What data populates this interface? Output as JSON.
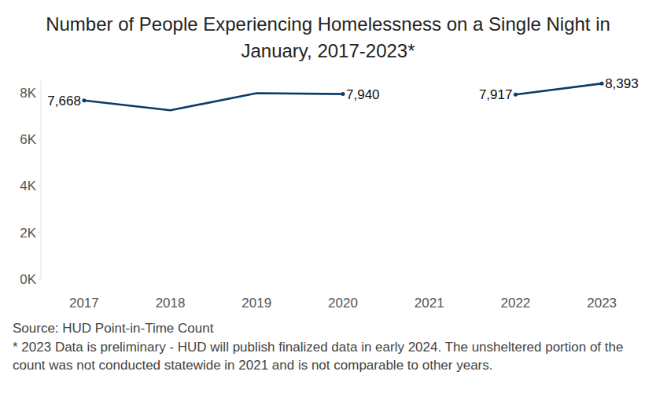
{
  "chart_data": {
    "type": "line",
    "title": "Number of People Experiencing Homelessness on a Single Night in January, 2017-2023*",
    "source": "Source: HUD Point-in-Time Count",
    "footnote": "* 2023 Data is preliminary - HUD will publish finalized data in early 2024. The unsheltered portion of the count was not conducted statewide in 2021 and is not comparable to other years.",
    "categories": [
      "2017",
      "2018",
      "2019",
      "2020",
      "2021",
      "2022",
      "2023"
    ],
    "values": [
      7668,
      7243,
      7977,
      7940,
      null,
      7917,
      8393
    ],
    "value_labels": [
      "7,668",
      null,
      null,
      "7,940",
      null,
      "7,917",
      "8,393"
    ],
    "data_labels": true,
    "color": "#0d3a66",
    "ylim": [
      0,
      8500
    ],
    "yticks": [
      {
        "value": 0,
        "label": "0K"
      },
      {
        "value": 2000,
        "label": "2K"
      },
      {
        "value": 4000,
        "label": "4K"
      },
      {
        "value": 6000,
        "label": "6K"
      },
      {
        "value": 8000,
        "label": "8K"
      }
    ],
    "grid": false
  }
}
